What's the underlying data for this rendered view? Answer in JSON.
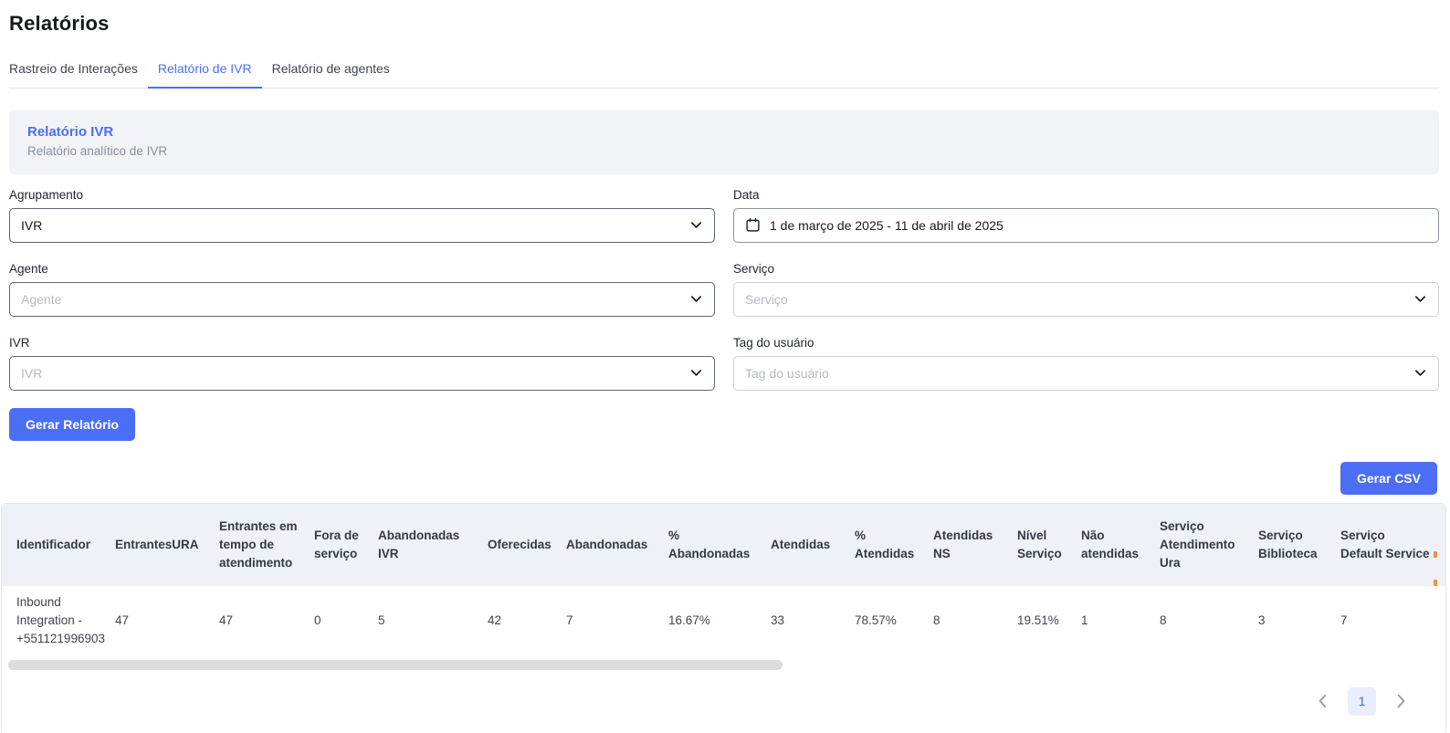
{
  "page": {
    "title": "Relatórios"
  },
  "tabs": [
    {
      "label": "Rastreio de Interações",
      "active": false
    },
    {
      "label": "Relatório de IVR",
      "active": true
    },
    {
      "label": "Relatório de agentes",
      "active": false
    }
  ],
  "card": {
    "title": "Relatório IVR",
    "subtitle": "Relatório analítico de IVR"
  },
  "filters": {
    "agrupamento": {
      "label": "Agrupamento",
      "value": "IVR"
    },
    "data": {
      "label": "Data",
      "value": "1 de março de 2025 - 11 de abril de 2025"
    },
    "agente": {
      "label": "Agente",
      "placeholder": "Agente"
    },
    "servico": {
      "label": "Serviço",
      "placeholder": "Serviço"
    },
    "ivr": {
      "label": "IVR",
      "placeholder": "IVR"
    },
    "tag": {
      "label": "Tag do usuário",
      "placeholder": "Tag do usuário"
    }
  },
  "buttons": {
    "generate_report": "Gerar Relatório",
    "generate_csv": "Gerar CSV"
  },
  "table": {
    "columns": [
      "Identificador",
      "EntrantesURA",
      "Entrantes em tempo de atendimento",
      "Fora de serviço",
      "Abandonadas IVR",
      "Oferecidas",
      "Abandonadas",
      "% Abandonadas",
      "Atendidas",
      "% Atendidas",
      "Atendidas NS",
      "Nível Serviço",
      "Não atendidas",
      "Serviço Atendimento Ura",
      "Serviço Biblioteca",
      "Serviço Default Service"
    ],
    "rows": [
      [
        "Inbound Integration - +551121996903",
        "47",
        "47",
        "0",
        "5",
        "42",
        "7",
        "16.67%",
        "33",
        "78.57%",
        "8",
        "19.51%",
        "1",
        "8",
        "3",
        "7"
      ]
    ]
  },
  "pagination": {
    "current_page": "1"
  },
  "colors": {
    "accent": "#4c6ef5",
    "active_page_bg": "#e9edfc",
    "active_page_text": "#4263eb",
    "table_header_bg": "#eef1f6",
    "card_bg": "#f1f3f6"
  }
}
